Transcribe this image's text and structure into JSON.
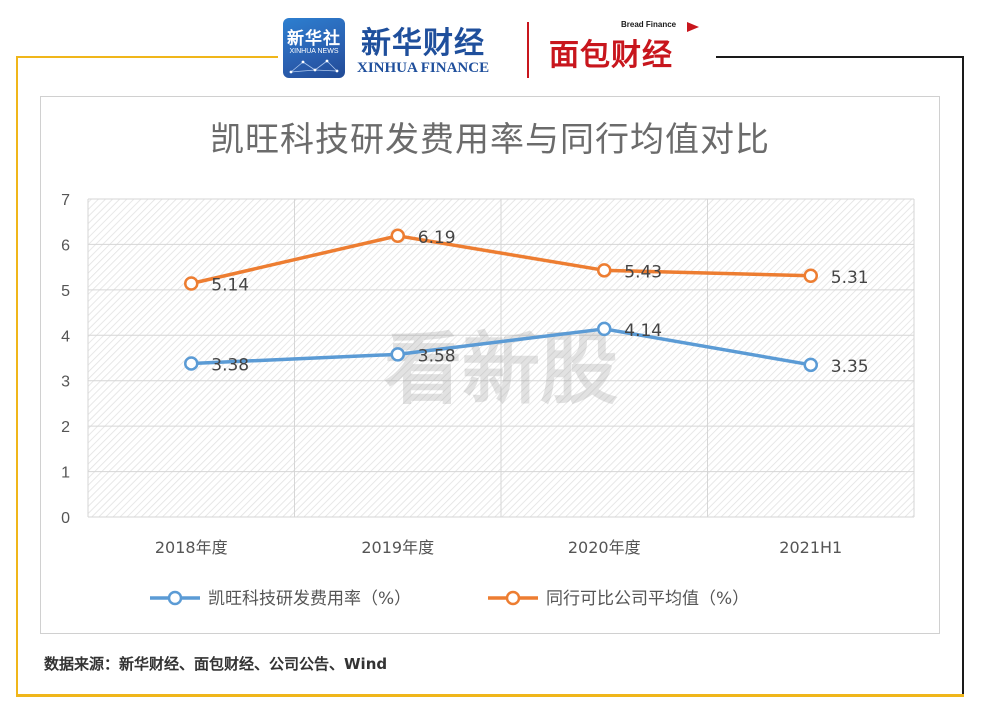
{
  "header": {
    "xinhua_badge_cn": "新华社",
    "xinhua_badge_en": "XINHUA NEWS",
    "xinhua_finance_cn": "新华财经",
    "xinhua_finance_en": "XINHUA FINANCE",
    "bread_finance_en": "Bread Finance",
    "bread_finance_cn": "面包财经"
  },
  "watermark": "看新股",
  "source_note": "数据来源：新华财经、面包财经、公司公告、Wind",
  "colors": {
    "series_blue": "#5b9bd5",
    "series_orange": "#ed7d31",
    "frame_gold": "#f0b61a",
    "brand_red": "#c8161d"
  },
  "chart_data": {
    "type": "line",
    "title": "凯旺科技研发费用率与同行均值对比",
    "categories": [
      "2018年度",
      "2019年度",
      "2020年度",
      "2021H1"
    ],
    "ylim": [
      0,
      7
    ],
    "yticks": [
      "0",
      "1",
      "2",
      "3",
      "4",
      "5",
      "6",
      "7"
    ],
    "grid": true,
    "legend_position": "bottom",
    "series": [
      {
        "name": "凯旺科技研发费用率（%）",
        "values": [
          3.38,
          3.58,
          4.14,
          3.35
        ],
        "labels": [
          "3.38",
          "3.58",
          "4.14",
          "3.35"
        ],
        "color": "#5b9bd5"
      },
      {
        "name": "同行可比公司平均值（%）",
        "values": [
          5.14,
          6.19,
          5.43,
          5.31
        ],
        "labels": [
          "5.14",
          "6.19",
          "5.43",
          "5.31"
        ],
        "color": "#ed7d31"
      }
    ]
  }
}
